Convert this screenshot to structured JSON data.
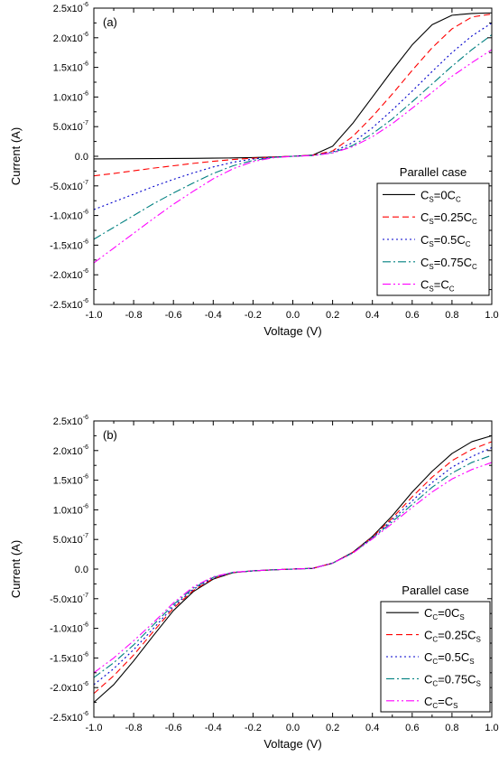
{
  "chart_data": [
    {
      "type": "line",
      "panel_label": "(a)",
      "xlabel": "Voltage (V)",
      "ylabel": "Current (A)",
      "xlim": [
        -1.0,
        1.0
      ],
      "ylim": [
        -2.5e-06,
        2.5e-06
      ],
      "x_ticks": [
        -1.0,
        -0.8,
        -0.6,
        -0.4,
        -0.2,
        0.0,
        0.2,
        0.4,
        0.6,
        0.8,
        1.0
      ],
      "x_tick_labels": [
        "-1.0",
        "-0.8",
        "-0.6",
        "-0.4",
        "-0.2",
        "0.0",
        "0.2",
        "0.4",
        "0.6",
        "0.8",
        "1.0"
      ],
      "y_ticks": [
        -2.5e-06,
        -2e-06,
        -1.5e-06,
        -1e-06,
        -5e-07,
        0,
        5e-07,
        1e-06,
        1.5e-06,
        2e-06,
        2.5e-06
      ],
      "y_tick_labels": [
        {
          "m": "-2.5x10",
          "e": "-6"
        },
        {
          "m": "-2.0x10",
          "e": "-6"
        },
        {
          "m": "-1.5x10",
          "e": "-6"
        },
        {
          "m": "-1.0x10",
          "e": "-6"
        },
        {
          "m": "-5.0x10",
          "e": "-7"
        },
        {
          "m": "0.0",
          "e": ""
        },
        {
          "m": "5.0x10",
          "e": "-7"
        },
        {
          "m": "1.0x10",
          "e": "-6"
        },
        {
          "m": "1.5x10",
          "e": "-6"
        },
        {
          "m": "2.0x10",
          "e": "-6"
        },
        {
          "m": "2.5x10",
          "e": "-6"
        }
      ],
      "grid": false,
      "legend_title": "Parallel case",
      "legend_position": "lower-right",
      "x": [
        -1.0,
        -0.9,
        -0.8,
        -0.7,
        -0.6,
        -0.5,
        -0.4,
        -0.3,
        -0.2,
        -0.1,
        0.0,
        0.1,
        0.2,
        0.3,
        0.4,
        0.5,
        0.6,
        0.7,
        0.8,
        0.9,
        1.0
      ],
      "series": [
        {
          "legend": {
            "a": "C",
            "as": "S",
            "b": "=0C",
            "bs": "C"
          },
          "color": "#000000",
          "dash": "",
          "values": [
            -4.5e-08,
            -4.3e-08,
            -4.1e-08,
            -3.9e-08,
            -3.7e-08,
            -3.5e-08,
            -3.2e-08,
            -2.8e-08,
            -2.2e-08,
            -1.2e-08,
            0,
            2e-08,
            1.7e-07,
            5.5e-07,
            1e-06,
            1.45e-06,
            1.88e-06,
            2.22e-06,
            2.38e-06,
            2.41e-06,
            2.42e-06
          ]
        },
        {
          "legend": {
            "a": "C",
            "as": "S",
            "b": "=0.25C",
            "bs": "C"
          },
          "color": "#ff0000",
          "dash": "7,4",
          "values": [
            -3.3e-07,
            -2.9e-07,
            -2.45e-07,
            -2e-07,
            -1.6e-07,
            -1.2e-07,
            -8.5e-08,
            -5.5e-08,
            -3.2e-08,
            -1.4e-08,
            0,
            1.6e-08,
            9e-08,
            3.3e-07,
            6.7e-07,
            1.05e-06,
            1.45e-06,
            1.83e-06,
            2.15e-06,
            2.35e-06,
            2.4e-06
          ]
        },
        {
          "legend": {
            "a": "C",
            "as": "S",
            "b": "=0.5C",
            "bs": "C"
          },
          "color": "#0000cc",
          "dash": "2,3",
          "values": [
            -9e-07,
            -7.7e-07,
            -6.4e-07,
            -5.1e-07,
            -3.9e-07,
            -2.8e-07,
            -1.8e-07,
            -1e-07,
            -4.6e-08,
            -1.6e-08,
            0,
            1.4e-08,
            7e-08,
            2.3e-07,
            4.8e-07,
            7.8e-07,
            1.1e-06,
            1.43e-06,
            1.75e-06,
            2.03e-06,
            2.25e-06
          ]
        },
        {
          "legend": {
            "a": "C",
            "as": "S",
            "b": "=0.75C",
            "bs": "C"
          },
          "color": "#008080",
          "dash": "9,3,2,3",
          "values": [
            -1.4e-06,
            -1.2e-06,
            -1e-06,
            -8e-07,
            -6.2e-07,
            -4.5e-07,
            -2.9e-07,
            -1.6e-07,
            -7e-08,
            -2e-08,
            0,
            1.3e-08,
            6e-08,
            1.8e-07,
            3.8e-07,
            6.3e-07,
            9.2e-07,
            1.22e-06,
            1.52e-06,
            1.8e-06,
            2.05e-06
          ]
        },
        {
          "legend": {
            "a": "C",
            "as": "S",
            "b": "=C",
            "bs": "C"
          },
          "color": "#ff00ff",
          "dash": "9,3,2,3,2,3",
          "values": [
            -1.8e-06,
            -1.55e-06,
            -1.3e-06,
            -1.05e-06,
            -8.1e-07,
            -5.9e-07,
            -3.8e-07,
            -2.1e-07,
            -9e-08,
            -2.5e-08,
            0,
            1.2e-08,
            5.5e-08,
            1.6e-07,
            3.3e-07,
            5.5e-07,
            8.1e-07,
            1.08e-06,
            1.35e-06,
            1.58e-06,
            1.8e-06
          ]
        }
      ]
    },
    {
      "type": "line",
      "panel_label": "(b)",
      "xlabel": "Voltage (V)",
      "ylabel": "Current (A)",
      "xlim": [
        -1.0,
        1.0
      ],
      "ylim": [
        -2.5e-06,
        2.5e-06
      ],
      "x_ticks": [
        -1.0,
        -0.8,
        -0.6,
        -0.4,
        -0.2,
        0.0,
        0.2,
        0.4,
        0.6,
        0.8,
        1.0
      ],
      "x_tick_labels": [
        "-1.0",
        "-0.8",
        "-0.6",
        "-0.4",
        "-0.2",
        "0.0",
        "0.2",
        "0.4",
        "0.6",
        "0.8",
        "1.0"
      ],
      "y_ticks": [
        -2.5e-06,
        -2e-06,
        -1.5e-06,
        -1e-06,
        -5e-07,
        0,
        5e-07,
        1e-06,
        1.5e-06,
        2e-06,
        2.5e-06
      ],
      "y_tick_labels": [
        {
          "m": "-2.5x10",
          "e": "-6"
        },
        {
          "m": "-2.0x10",
          "e": "-6"
        },
        {
          "m": "-1.5x10",
          "e": "-6"
        },
        {
          "m": "-1.0x10",
          "e": "-6"
        },
        {
          "m": "-5.0x10",
          "e": "-7"
        },
        {
          "m": "0.0",
          "e": ""
        },
        {
          "m": "5.0x10",
          "e": "-7"
        },
        {
          "m": "1.0x10",
          "e": "-6"
        },
        {
          "m": "1.5x10",
          "e": "-6"
        },
        {
          "m": "2.0x10",
          "e": "-6"
        },
        {
          "m": "2.5x10",
          "e": "-6"
        }
      ],
      "grid": false,
      "legend_title": "Parallel case",
      "legend_position": "lower-right",
      "x": [
        -1.0,
        -0.9,
        -0.8,
        -0.7,
        -0.6,
        -0.5,
        -0.4,
        -0.3,
        -0.2,
        -0.1,
        0.0,
        0.1,
        0.2,
        0.3,
        0.4,
        0.5,
        0.6,
        0.7,
        0.8,
        0.9,
        1.0
      ],
      "series": [
        {
          "legend": {
            "a": "C",
            "as": "C",
            "b": "=0C",
            "bs": "S"
          },
          "color": "#000000",
          "dash": "",
          "values": [
            -2.25e-06,
            -1.95e-06,
            -1.55e-06,
            -1.12e-06,
            -7e-07,
            -3.8e-07,
            -1.7e-07,
            -6e-08,
            -3e-08,
            -1.2e-08,
            0,
            1.2e-08,
            1e-07,
            2.8e-07,
            5.5e-07,
            9e-07,
            1.3e-06,
            1.65e-06,
            1.95e-06,
            2.15e-06,
            2.25e-06
          ]
        },
        {
          "legend": {
            "a": "C",
            "as": "C",
            "b": "=0.25C",
            "bs": "S"
          },
          "color": "#ff0000",
          "dash": "7,4",
          "values": [
            -2.1e-06,
            -1.8e-06,
            -1.45e-06,
            -1.05e-06,
            -6.6e-07,
            -3.6e-07,
            -1.6e-07,
            -5.8e-08,
            -3e-08,
            -1.2e-08,
            0,
            1.2e-08,
            1e-07,
            2.8e-07,
            5.4e-07,
            8.6e-07,
            1.22e-06,
            1.55e-06,
            1.83e-06,
            2.02e-06,
            2.15e-06
          ]
        },
        {
          "legend": {
            "a": "C",
            "as": "C",
            "b": "=0.5C",
            "bs": "S"
          },
          "color": "#0000cc",
          "dash": "2,3",
          "values": [
            -1.95e-06,
            -1.68e-06,
            -1.36e-06,
            -1e-06,
            -6.3e-07,
            -3.4e-07,
            -1.5e-07,
            -5.6e-08,
            -3e-08,
            -1.2e-08,
            0,
            1.2e-08,
            1e-07,
            2.75e-07,
            5.3e-07,
            8.3e-07,
            1.15e-06,
            1.46e-06,
            1.72e-06,
            1.9e-06,
            2.05e-06
          ]
        },
        {
          "legend": {
            "a": "C",
            "as": "C",
            "b": "=0.75C",
            "bs": "S"
          },
          "color": "#008080",
          "dash": "9,3,2,3",
          "values": [
            -1.83e-06,
            -1.58e-06,
            -1.28e-06,
            -9.4e-07,
            -6e-07,
            -3.2e-07,
            -1.4e-07,
            -5.5e-08,
            -3e-08,
            -1.2e-08,
            0,
            1.2e-08,
            1e-07,
            2.7e-07,
            5.2e-07,
            8e-07,
            1.09e-06,
            1.38e-06,
            1.62e-06,
            1.8e-06,
            1.92e-06
          ]
        },
        {
          "legend": {
            "a": "C",
            "as": "C",
            "b": "=C",
            "bs": "S"
          },
          "color": "#ff00ff",
          "dash": "9,3,2,3,2,3",
          "values": [
            -1.75e-06,
            -1.5e-06,
            -1.21e-06,
            -9e-07,
            -5.7e-07,
            -3e-07,
            -1.3e-07,
            -5.3e-08,
            -3e-08,
            -1.2e-08,
            0,
            1.2e-08,
            1e-07,
            2.65e-07,
            5.1e-07,
            7.7e-07,
            1.04e-06,
            1.3e-06,
            1.52e-06,
            1.68e-06,
            1.8e-06
          ]
        }
      ]
    }
  ]
}
